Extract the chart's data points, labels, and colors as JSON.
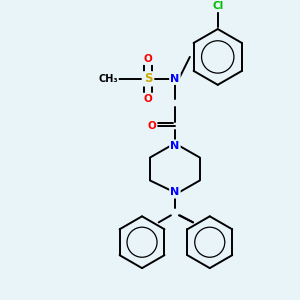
{
  "bg_color": "#e8f4f8",
  "atom_colors": {
    "N": "#0000ff",
    "O": "#ff0000",
    "S": "#ccaa00",
    "Cl": "#00bb00",
    "C": "#000000"
  },
  "bond_color": "#000000",
  "bond_width": 1.4
}
